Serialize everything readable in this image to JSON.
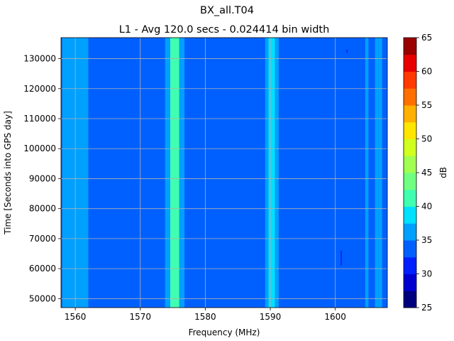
{
  "chart_data": {
    "type": "heatmap",
    "title": "BX_all.T04",
    "subtitle": "L1 - Avg 120.0 secs - 0.024414 bin width",
    "xlabel": "Frequency (MHz)",
    "ylabel": "Time [Seconds into GPS day]",
    "xlim": [
      1557.8,
      1608.0
    ],
    "ylim": [
      47000,
      137000
    ],
    "x_ticks": [
      1560,
      1570,
      1580,
      1590,
      1600
    ],
    "y_ticks": [
      50000,
      60000,
      70000,
      80000,
      90000,
      100000,
      110000,
      120000,
      130000
    ],
    "grid": true,
    "colorbar": {
      "label": "dB",
      "min": 25,
      "max": 65,
      "ticks": [
        25,
        30,
        35,
        40,
        45,
        50,
        55,
        60,
        65
      ],
      "levels": [
        25,
        27.5,
        30,
        32.5,
        35,
        37.5,
        40,
        42.5,
        45,
        47.5,
        50,
        52.5,
        55,
        57.5,
        60,
        62.5,
        65
      ],
      "colors": [
        "#00007f",
        "#0000d0",
        "#0020ff",
        "#0060ff",
        "#00a0ff",
        "#00e0ff",
        "#40ffb0",
        "#70ff80",
        "#a0ff50",
        "#d0ff20",
        "#ffe500",
        "#ffb000",
        "#ff7000",
        "#ff3a00",
        "#e80000",
        "#9a0000"
      ]
    },
    "background_level": 33.5,
    "bands": [
      {
        "x_start": 1558.0,
        "x_end": 1559.0,
        "level": 36
      },
      {
        "x_start": 1559.0,
        "x_end": 1562.0,
        "level": 37
      },
      {
        "x_start": 1573.8,
        "x_end": 1574.6,
        "level": 37
      },
      {
        "x_start": 1574.6,
        "x_end": 1576.0,
        "level": 40
      },
      {
        "x_start": 1576.0,
        "x_end": 1576.8,
        "level": 37
      },
      {
        "x_start": 1589.2,
        "x_end": 1589.7,
        "level": 37
      },
      {
        "x_start": 1589.7,
        "x_end": 1590.7,
        "level": 39
      },
      {
        "x_start": 1590.7,
        "x_end": 1591.3,
        "level": 37
      },
      {
        "x_start": 1604.6,
        "x_end": 1605.1,
        "level": 36
      },
      {
        "x_start": 1606.1,
        "x_end": 1606.6,
        "level": 36
      },
      {
        "x_start": 1606.6,
        "x_end": 1607.2,
        "level": 37
      }
    ],
    "spots": [
      {
        "x": 1600.9,
        "y_start": 61000,
        "y_end": 66000,
        "level": 31
      },
      {
        "x": 1601.8,
        "y_start": 132000,
        "y_end": 133000,
        "level": 31
      }
    ]
  }
}
